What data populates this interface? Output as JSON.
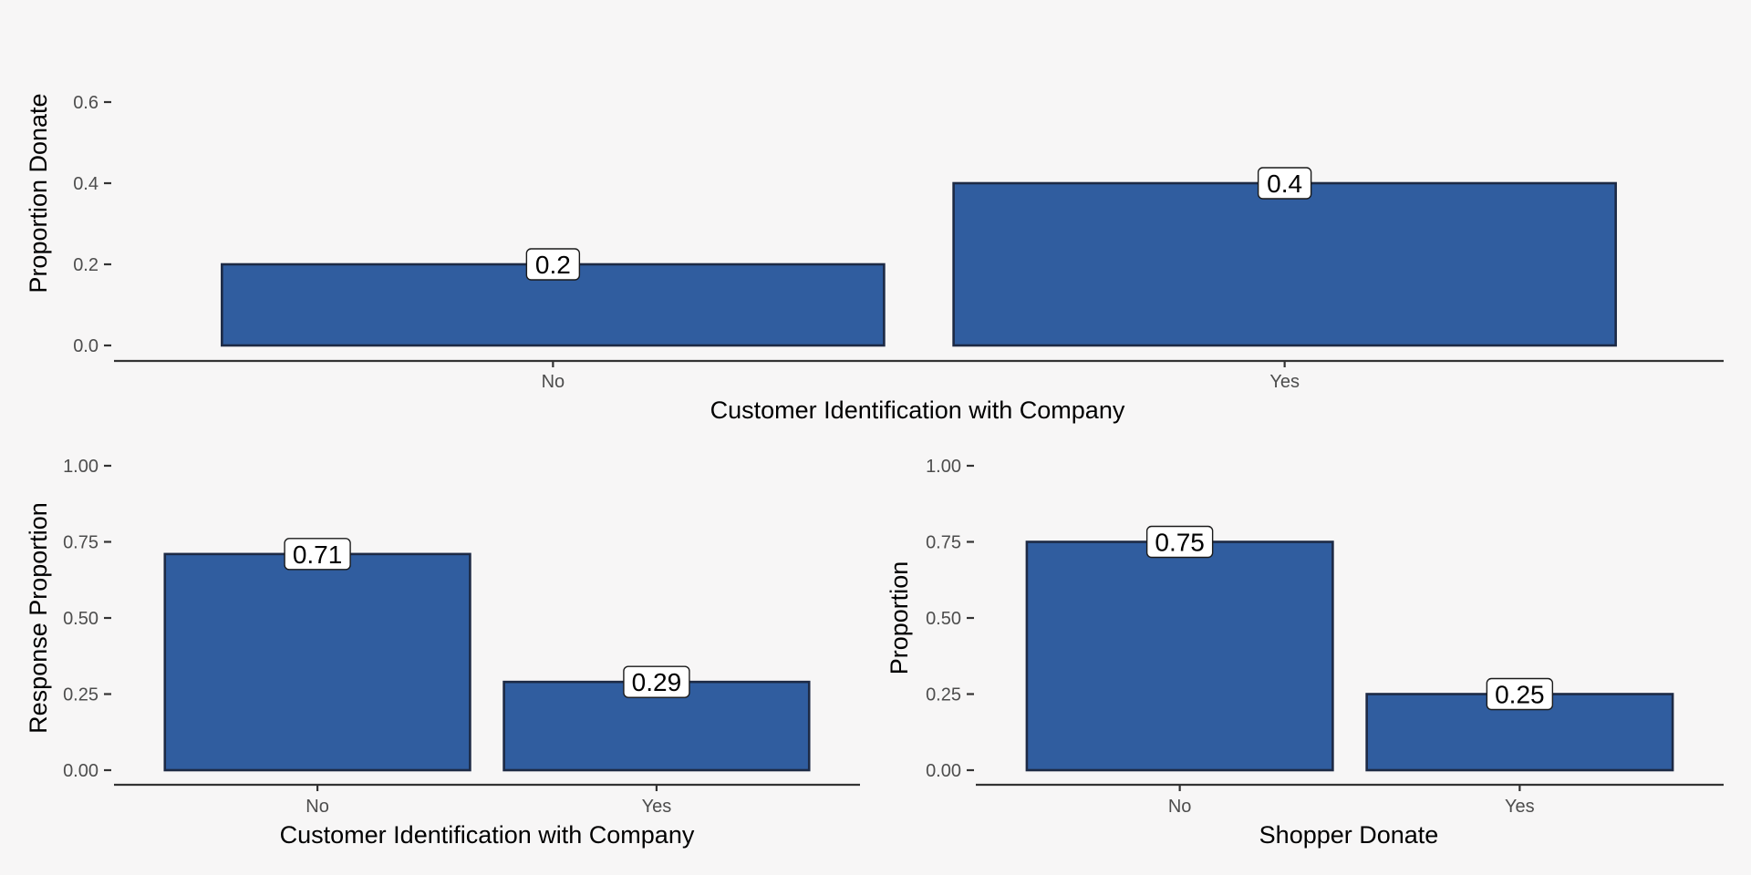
{
  "colors": {
    "background": "#f7f6f6",
    "bar_fill": "#305d9f",
    "bar_stroke": "#1d2a45",
    "axis": "#333333",
    "tick_text": "#4d4d4d",
    "label_box": "#ffffff"
  },
  "chart_data": [
    {
      "type": "bar",
      "categories": [
        "No",
        "Yes"
      ],
      "values": [
        0.2,
        0.4
      ],
      "data_labels": [
        "0.2",
        "0.4"
      ],
      "xlabel": "Customer Identification with Company",
      "ylabel": "Proportion Donate",
      "ylim": [
        0,
        0.6
      ],
      "yticks": [
        0,
        0.2,
        0.4,
        0.6
      ],
      "ytick_labels": [
        "0.0",
        "0.2",
        "0.4",
        "0.6"
      ],
      "grid": false,
      "legend": "none"
    },
    {
      "type": "bar",
      "categories": [
        "No",
        "Yes"
      ],
      "values": [
        0.71,
        0.29
      ],
      "data_labels": [
        "0.71",
        "0.29"
      ],
      "xlabel": "Customer Identification with Company",
      "ylabel": "Response Proportion",
      "ylim": [
        0,
        1
      ],
      "yticks": [
        0,
        0.25,
        0.5,
        0.75,
        1
      ],
      "ytick_labels": [
        "0.00",
        "0.25",
        "0.50",
        "0.75",
        "1.00"
      ],
      "grid": false,
      "legend": "none"
    },
    {
      "type": "bar",
      "categories": [
        "No",
        "Yes"
      ],
      "values": [
        0.75,
        0.25
      ],
      "data_labels": [
        "0.75",
        "0.25"
      ],
      "xlabel": "Shopper Donate",
      "ylabel": "Proportion",
      "ylim": [
        0,
        1
      ],
      "yticks": [
        0,
        0.25,
        0.5,
        0.75,
        1
      ],
      "ytick_labels": [
        "0.00",
        "0.25",
        "0.50",
        "0.75",
        "1.00"
      ],
      "grid": false,
      "legend": "none"
    }
  ]
}
